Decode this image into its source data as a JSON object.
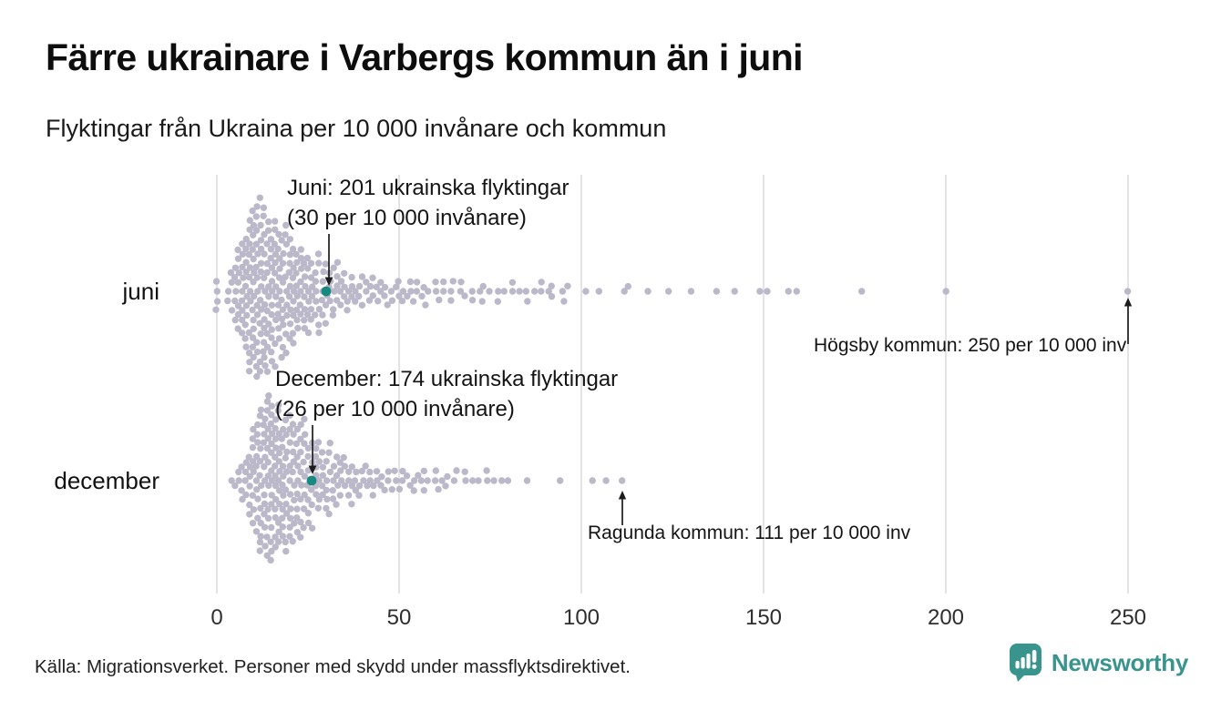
{
  "title": "Färre ukrainare i Varbergs kommun än i juni",
  "subtitle": "Flyktingar från Ukraina per 10 000 invånare och kommun",
  "source": "Källa: Migrationsverket. Personer med skydd under massflyktsdirektivet.",
  "logo": {
    "name": "Newsworthy"
  },
  "colors": {
    "dot": "#bbb8c9",
    "highlight": "#17897e",
    "grid": "#d8d8dc",
    "brand": "#38948c",
    "text": "#1a1a1a"
  },
  "chart_data": {
    "type": "beeswarm",
    "title": "Flyktingar från Ukraina per 10 000 invånare och kommun",
    "xlabel": "",
    "ylabel": "",
    "xlim": [
      0,
      250
    ],
    "x_ticks": [
      0,
      50,
      100,
      150,
      200,
      250
    ],
    "grid": "vertical",
    "unit": "flyktingar per 10 000 invånare",
    "rows": [
      {
        "label": "juni",
        "highlight": {
          "municipality": "Varbergs kommun",
          "value": 30,
          "refugees": 201,
          "annotation_line1": "Juni: 201 ukrainska flyktingar",
          "annotation_line2": "(30 per 10 000 invånare)"
        },
        "outlier": {
          "municipality": "Högsby kommun",
          "value": 250,
          "annotation": "Högsby kommun: 250 per 10 000 inv"
        },
        "values_hist": [
          [
            0,
            4
          ],
          [
            3,
            2
          ],
          [
            4,
            3
          ],
          [
            5,
            5
          ],
          [
            6,
            7
          ],
          [
            7,
            9
          ],
          [
            8,
            11
          ],
          [
            9,
            12
          ],
          [
            10,
            14
          ],
          [
            11,
            14
          ],
          [
            12,
            13
          ],
          [
            13,
            13
          ],
          [
            14,
            12
          ],
          [
            15,
            12
          ],
          [
            16,
            11
          ],
          [
            17,
            10
          ],
          [
            18,
            10
          ],
          [
            19,
            9
          ],
          [
            20,
            9
          ],
          [
            21,
            8
          ],
          [
            22,
            8
          ],
          [
            23,
            7
          ],
          [
            24,
            7
          ],
          [
            25,
            6
          ],
          [
            26,
            6
          ],
          [
            27,
            5
          ],
          [
            28,
            5
          ],
          [
            29,
            5
          ],
          [
            30,
            4
          ],
          [
            31,
            4
          ],
          [
            32,
            4
          ],
          [
            33,
            4
          ],
          [
            34,
            3
          ],
          [
            35,
            3
          ],
          [
            36,
            3
          ],
          [
            37,
            3
          ],
          [
            38,
            2
          ],
          [
            39,
            2
          ],
          [
            40,
            2
          ],
          [
            41,
            2
          ],
          [
            42,
            2
          ],
          [
            43,
            2
          ],
          [
            44,
            2
          ],
          [
            45,
            2
          ],
          [
            46,
            2
          ],
          [
            47,
            1
          ],
          [
            48,
            2
          ],
          [
            49,
            1
          ],
          [
            50,
            2
          ],
          [
            51,
            2
          ],
          [
            52,
            1
          ],
          [
            53,
            2
          ],
          [
            54,
            1
          ],
          [
            55,
            2
          ],
          [
            56,
            1
          ],
          [
            57,
            2
          ],
          [
            58,
            1
          ],
          [
            60,
            2
          ],
          [
            61,
            1
          ],
          [
            62,
            2
          ],
          [
            64,
            2
          ],
          [
            65,
            1
          ],
          [
            67,
            2
          ],
          [
            68,
            1
          ],
          [
            70,
            2
          ],
          [
            72,
            1
          ],
          [
            73,
            2
          ],
          [
            75,
            1
          ],
          [
            77,
            2
          ],
          [
            79,
            1
          ],
          [
            81,
            2
          ],
          [
            83,
            1
          ],
          [
            85,
            2
          ],
          [
            87,
            1
          ],
          [
            89,
            2
          ],
          [
            91,
            1
          ],
          [
            92,
            2
          ],
          [
            95,
            2
          ],
          [
            96,
            1
          ],
          [
            101,
            1
          ],
          [
            105,
            1
          ],
          [
            112,
            1
          ],
          [
            113,
            1
          ],
          [
            118,
            1
          ],
          [
            124,
            1
          ],
          [
            130,
            1
          ],
          [
            137,
            1
          ],
          [
            142,
            1
          ],
          [
            149,
            1
          ],
          [
            151,
            1
          ],
          [
            157,
            1
          ],
          [
            159,
            1
          ],
          [
            177,
            1
          ],
          [
            200,
            1
          ],
          [
            250,
            1
          ]
        ]
      },
      {
        "label": "december",
        "highlight": {
          "municipality": "Varbergs kommun",
          "value": 26,
          "refugees": 174,
          "annotation_line1": "December: 174 ukrainska flyktingar",
          "annotation_line2": "(26 per 10 000 invånare)"
        },
        "outlier": {
          "municipality": "Ragunda kommun",
          "value": 111,
          "annotation": "Ragunda kommun: 111 per 10 000 inv"
        },
        "values_hist": [
          [
            4,
            1
          ],
          [
            5,
            1
          ],
          [
            6,
            2
          ],
          [
            7,
            3
          ],
          [
            8,
            4
          ],
          [
            9,
            6
          ],
          [
            10,
            8
          ],
          [
            11,
            10
          ],
          [
            12,
            11
          ],
          [
            13,
            12
          ],
          [
            14,
            13
          ],
          [
            15,
            14
          ],
          [
            16,
            13
          ],
          [
            17,
            12
          ],
          [
            18,
            11
          ],
          [
            19,
            10
          ],
          [
            20,
            10
          ],
          [
            21,
            9
          ],
          [
            22,
            9
          ],
          [
            23,
            8
          ],
          [
            24,
            8
          ],
          [
            25,
            7
          ],
          [
            26,
            6
          ],
          [
            27,
            6
          ],
          [
            28,
            5
          ],
          [
            29,
            5
          ],
          [
            30,
            5
          ],
          [
            31,
            4
          ],
          [
            32,
            4
          ],
          [
            33,
            4
          ],
          [
            34,
            4
          ],
          [
            35,
            3
          ],
          [
            36,
            3
          ],
          [
            37,
            3
          ],
          [
            38,
            3
          ],
          [
            39,
            2
          ],
          [
            40,
            2
          ],
          [
            41,
            2
          ],
          [
            42,
            2
          ],
          [
            43,
            2
          ],
          [
            44,
            2
          ],
          [
            45,
            2
          ],
          [
            46,
            1
          ],
          [
            47,
            2
          ],
          [
            48,
            1
          ],
          [
            49,
            2
          ],
          [
            50,
            1
          ],
          [
            51,
            2
          ],
          [
            52,
            1
          ],
          [
            53,
            1
          ],
          [
            54,
            2
          ],
          [
            55,
            1
          ],
          [
            56,
            1
          ],
          [
            57,
            2
          ],
          [
            58,
            1
          ],
          [
            60,
            2
          ],
          [
            61,
            1
          ],
          [
            62,
            1
          ],
          [
            63,
            2
          ],
          [
            65,
            1
          ],
          [
            66,
            1
          ],
          [
            68,
            2
          ],
          [
            70,
            1
          ],
          [
            72,
            1
          ],
          [
            74,
            2
          ],
          [
            76,
            1
          ],
          [
            78,
            1
          ],
          [
            80,
            1
          ],
          [
            85,
            1
          ],
          [
            94,
            1
          ],
          [
            103,
            1
          ],
          [
            107,
            1
          ],
          [
            111,
            1
          ]
        ]
      }
    ]
  }
}
